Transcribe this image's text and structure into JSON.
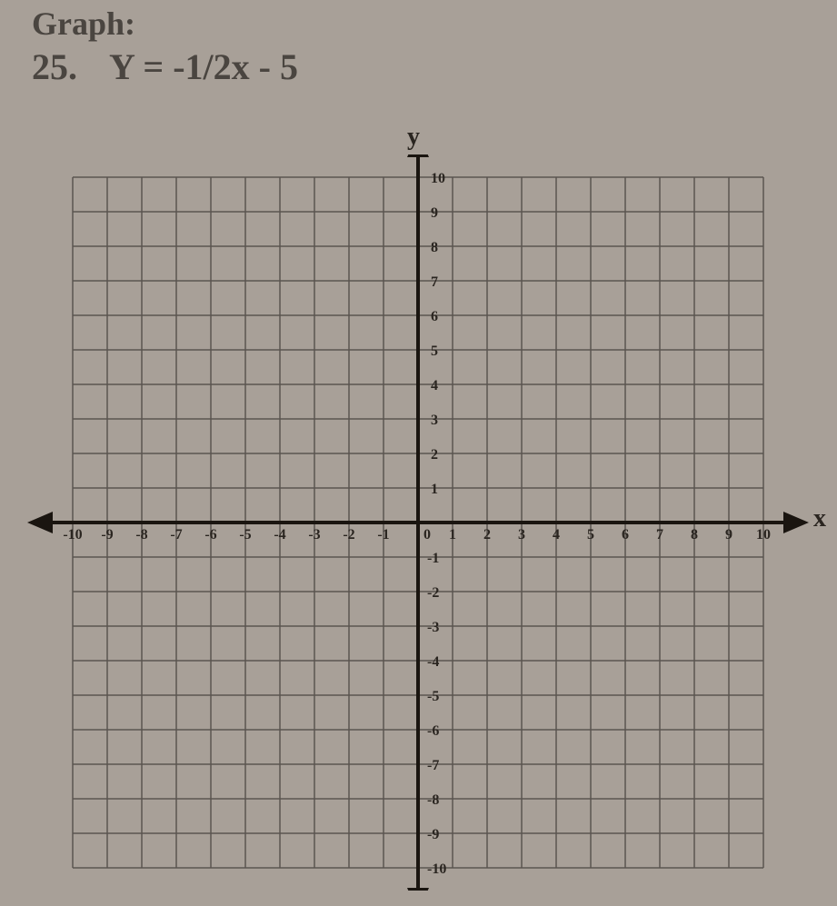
{
  "header": {
    "title": "Graph:",
    "problem_number": "25.",
    "equation": "Y = -1/2x - 5"
  },
  "axes": {
    "y_label": "y",
    "x_label": "x"
  },
  "chart": {
    "type": "coordinate-grid",
    "xlim": [
      -10,
      10
    ],
    "ylim": [
      -10,
      10
    ],
    "xtick_step": 1,
    "ytick_step": 1,
    "x_ticks": [
      -10,
      -9,
      -8,
      -7,
      -6,
      -5,
      -4,
      -3,
      -2,
      -1,
      1,
      2,
      3,
      4,
      5,
      6,
      7,
      8,
      9,
      10
    ],
    "y_ticks_pos": [
      1,
      2,
      3,
      4,
      5,
      6,
      7,
      8,
      9,
      10
    ],
    "y_ticks_neg": [
      -1,
      -2,
      -3,
      -4,
      -5,
      -6,
      -7,
      -8,
      -9,
      -10
    ],
    "grid_color": "#5a5550",
    "axis_color": "#1a1510",
    "background_color": "#a8a098",
    "grid_line_width": 1.5,
    "axis_line_width": 4,
    "cell_size": 38,
    "tick_fontsize": 16
  },
  "plotted_line": {
    "equation": "y = -1/2x - 5",
    "slope": -0.5,
    "intercept": -5,
    "visible": false
  }
}
